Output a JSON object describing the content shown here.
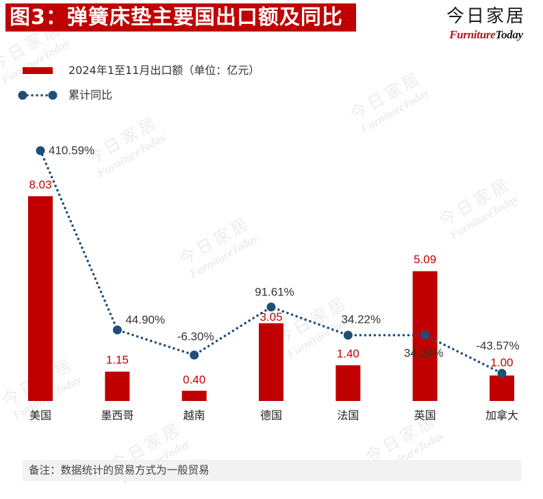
{
  "logo": {
    "cn": "今日家居",
    "en_part1": "Furniture",
    "en_part2": "Today"
  },
  "watermark": {
    "cn": "今日家居",
    "en": "FurnitureToday"
  },
  "colors": {
    "title_bg": "#c00000",
    "title_text": "#ffffff",
    "bar": "#c00000",
    "bar_label": "#c00000",
    "line": "#1f4e79",
    "line_label": "#333333",
    "category_label": "#222222",
    "note_bg": "#f2f2f2",
    "brand_red": "#b5121b"
  },
  "chart_data": {
    "type": "bar",
    "title": "图3：弹簧床垫主要国出口额及同比",
    "categories": [
      "美国",
      "墨西哥",
      "越南",
      "德国",
      "法国",
      "英国",
      "加拿大"
    ],
    "series": [
      {
        "name": "2024年1至11月出口额（单位：亿元）",
        "type": "bar",
        "values": [
          8.03,
          1.15,
          0.4,
          3.05,
          1.4,
          5.09,
          1.0
        ],
        "labels": [
          "8.03",
          "1.15",
          "0.40",
          "3.05",
          "1.40",
          "5.09",
          "1.00"
        ]
      },
      {
        "name": "累计同比",
        "type": "line",
        "line_style": "dotted",
        "marker": "circle",
        "values": [
          410.59,
          44.9,
          -6.3,
          91.61,
          34.22,
          34.24,
          -43.57
        ],
        "labels": [
          "410.59%",
          "44.90%",
          "-6.30%",
          "91.61%",
          "34.22%",
          "34.24%",
          "-43.57%"
        ]
      }
    ],
    "ylim": [
      0,
      10
    ],
    "y2lim": [
      -100,
      420
    ],
    "grid": false,
    "legend": "top-left"
  },
  "note": "备注：数据统计的贸易方式为一般贸易"
}
